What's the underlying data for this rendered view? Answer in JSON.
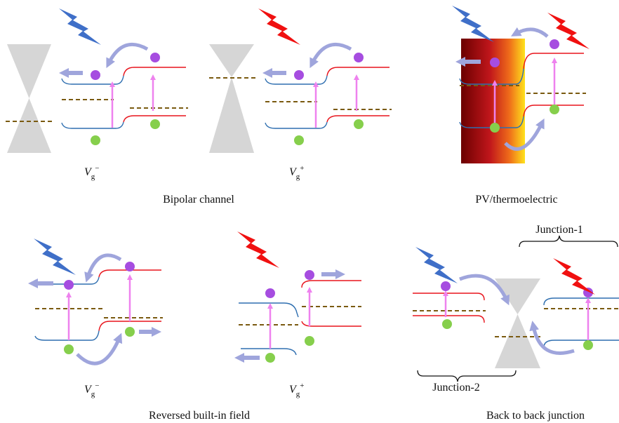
{
  "panels": [
    {
      "title": "Bipolar channel",
      "gate_labels": [
        {
          "symbol": "V",
          "subscript": "g",
          "superscript": "−"
        },
        {
          "symbol": "V",
          "subscript": "g",
          "superscript": "+"
        }
      ]
    },
    {
      "title": "PV/thermoelectric"
    },
    {
      "title": "Reversed built-in field",
      "gate_labels": [
        {
          "symbol": "V",
          "subscript": "g",
          "superscript": "−"
        },
        {
          "symbol": "V",
          "subscript": "g",
          "superscript": "+"
        }
      ]
    },
    {
      "title": "Back to back junction",
      "junctions": [
        "Junction-1",
        "Junction-2"
      ]
    }
  ]
}
